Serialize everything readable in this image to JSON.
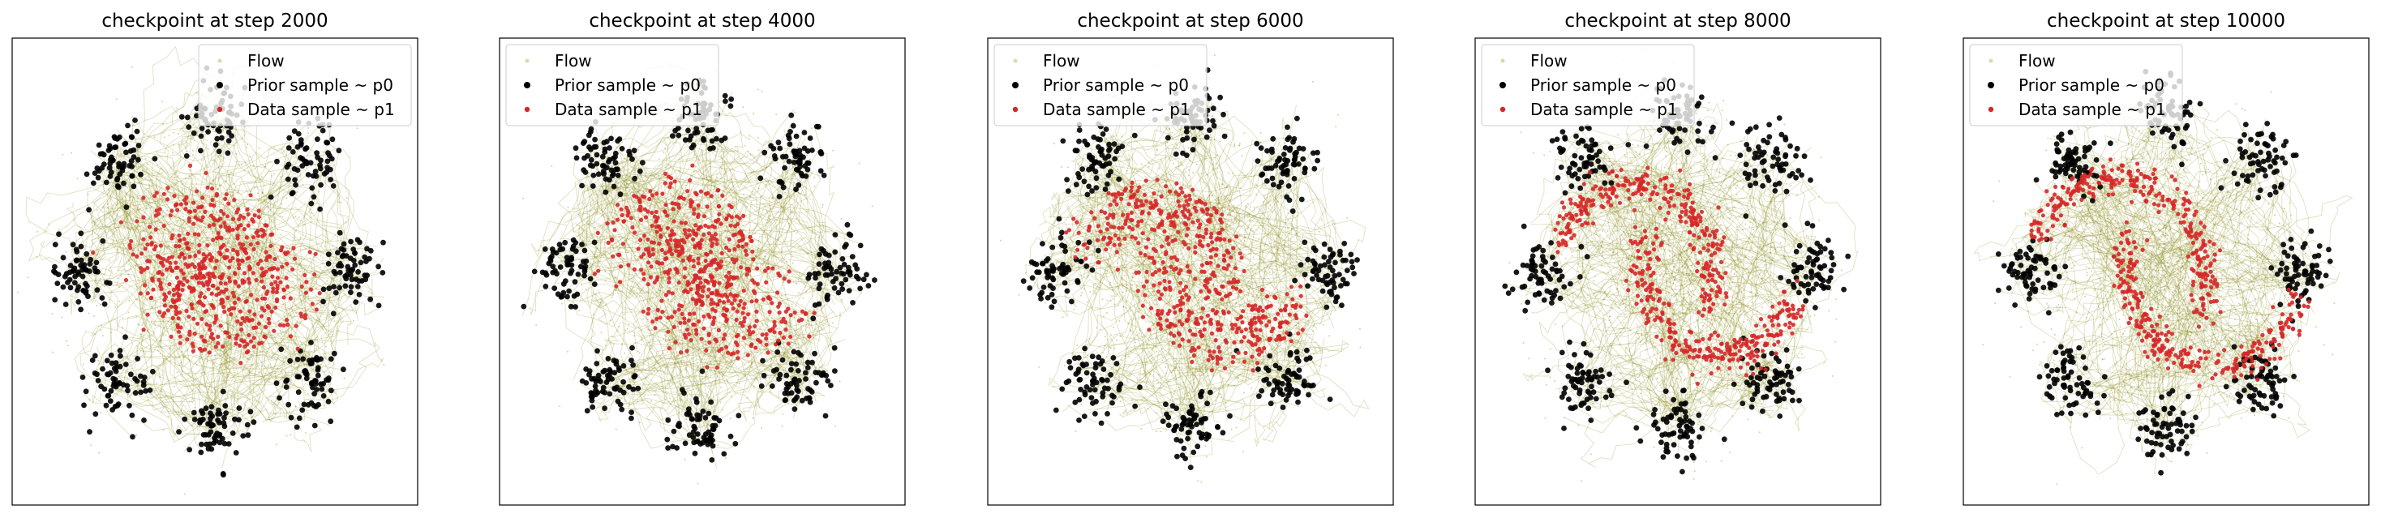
{
  "figure": {
    "panels": [
      {
        "title": "checkpoint at step 2000"
      },
      {
        "title": "checkpoint at step 4000"
      },
      {
        "title": "checkpoint at step 6000"
      },
      {
        "title": "checkpoint at step 8000"
      },
      {
        "title": "checkpoint at step 10000"
      }
    ],
    "legend": {
      "entries": [
        {
          "label": "Flow",
          "color": "#808000"
        },
        {
          "label": "Prior sample ~ p0",
          "color": "#000000"
        },
        {
          "label": "Data sample ~ p1",
          "color": "#d62728"
        }
      ]
    }
  },
  "chart_data": [
    {
      "type": "scatter",
      "title": "checkpoint at step 2000",
      "xlabel": "",
      "ylabel": "",
      "xlim": [
        -6,
        6
      ],
      "ylim": [
        -6,
        6
      ],
      "axis_ticks": false,
      "grid": false,
      "legend_position": "upper right",
      "series": [
        {
          "name": "Flow",
          "color": "#808000",
          "description": "trajectories from prior to data"
        },
        {
          "name": "Prior sample ~ p0",
          "color": "#000000",
          "distribution": "8 gaussians",
          "centers": [
            [
              4,
              0
            ],
            [
              2.83,
              2.83
            ],
            [
              0,
              4
            ],
            [
              -2.83,
              2.83
            ],
            [
              -4,
              0
            ],
            [
              -2.83,
              -2.83
            ],
            [
              0,
              -4
            ],
            [
              2.83,
              -2.83
            ]
          ]
        },
        {
          "name": "Data sample ~ p1",
          "color": "#d62728",
          "distribution": "two moons",
          "convergence": 0.35
        }
      ]
    },
    {
      "type": "scatter",
      "title": "checkpoint at step 4000",
      "xlabel": "",
      "ylabel": "",
      "xlim": [
        -6,
        6
      ],
      "ylim": [
        -6,
        6
      ],
      "axis_ticks": false,
      "grid": false,
      "legend_position": "upper left",
      "series": [
        {
          "name": "Flow",
          "color": "#808000"
        },
        {
          "name": "Prior sample ~ p0",
          "color": "#000000",
          "distribution": "8 gaussians"
        },
        {
          "name": "Data sample ~ p1",
          "color": "#d62728",
          "distribution": "two moons",
          "convergence": 0.55
        }
      ]
    },
    {
      "type": "scatter",
      "title": "checkpoint at step 6000",
      "xlabel": "",
      "ylabel": "",
      "xlim": [
        -6,
        6
      ],
      "ylim": [
        -6,
        6
      ],
      "axis_ticks": false,
      "grid": false,
      "legend_position": "upper left",
      "series": [
        {
          "name": "Flow",
          "color": "#808000"
        },
        {
          "name": "Prior sample ~ p0",
          "color": "#000000",
          "distribution": "8 gaussians"
        },
        {
          "name": "Data sample ~ p1",
          "color": "#d62728",
          "distribution": "two moons",
          "convergence": 0.75
        }
      ]
    },
    {
      "type": "scatter",
      "title": "checkpoint at step 8000",
      "xlabel": "",
      "ylabel": "",
      "xlim": [
        -6,
        6
      ],
      "ylim": [
        -6,
        6
      ],
      "axis_ticks": false,
      "grid": false,
      "legend_position": "upper left",
      "series": [
        {
          "name": "Flow",
          "color": "#808000"
        },
        {
          "name": "Prior sample ~ p0",
          "color": "#000000",
          "distribution": "8 gaussians"
        },
        {
          "name": "Data sample ~ p1",
          "color": "#d62728",
          "distribution": "two moons",
          "convergence": 0.9
        }
      ]
    },
    {
      "type": "scatter",
      "title": "checkpoint at step 10000",
      "xlabel": "",
      "ylabel": "",
      "xlim": [
        -6,
        6
      ],
      "ylim": [
        -6,
        6
      ],
      "axis_ticks": false,
      "grid": false,
      "legend_position": "upper left",
      "series": [
        {
          "name": "Flow",
          "color": "#808000"
        },
        {
          "name": "Prior sample ~ p0",
          "color": "#000000",
          "distribution": "8 gaussians"
        },
        {
          "name": "Data sample ~ p1",
          "color": "#d62728",
          "distribution": "two moons",
          "convergence": 1.0
        }
      ]
    }
  ]
}
